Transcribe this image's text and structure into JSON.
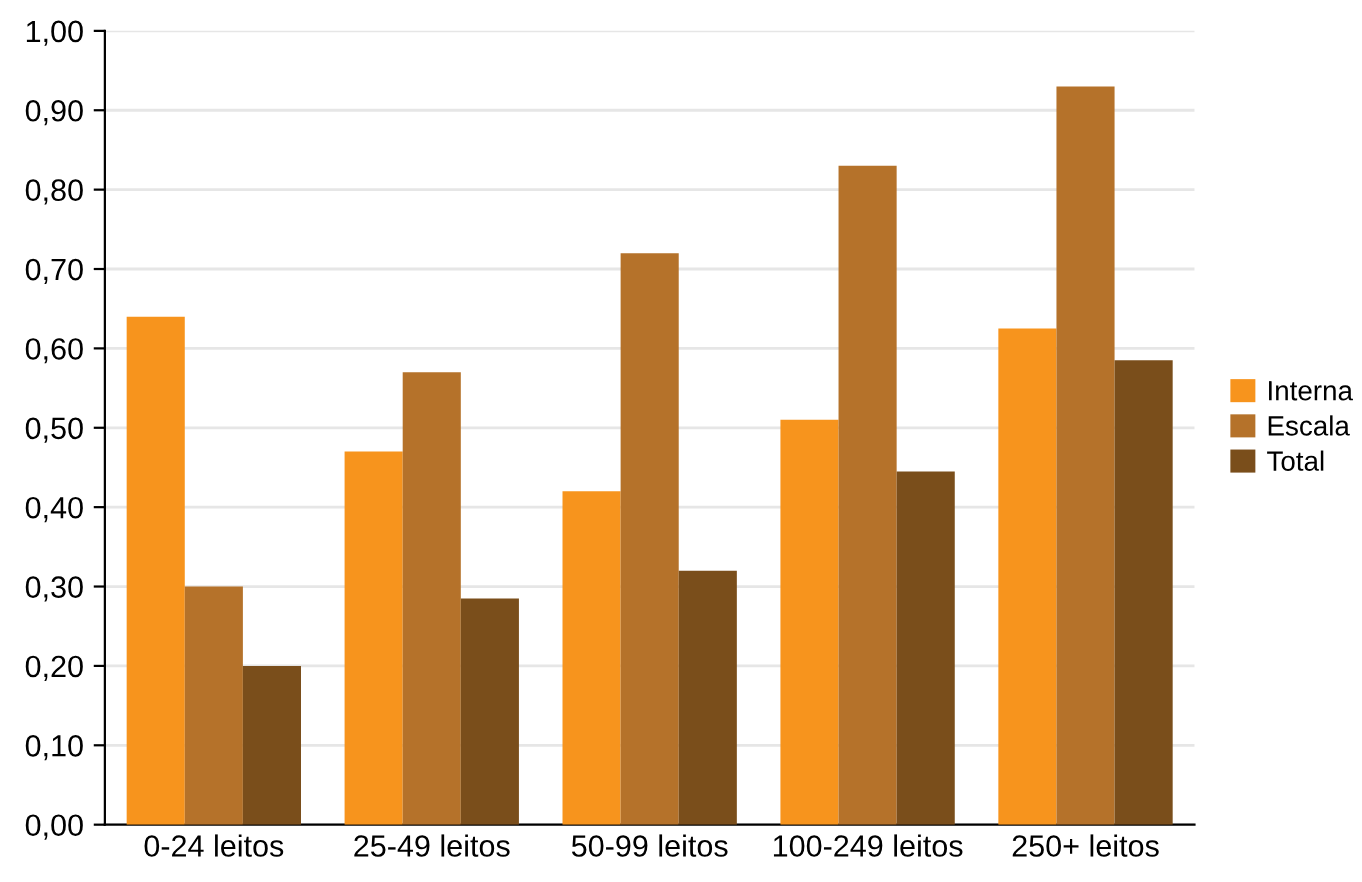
{
  "chart_data": {
    "type": "bar",
    "categories": [
      "0-24 leitos",
      "25-49 leitos",
      "50-99 leitos",
      "100-249 leitos",
      "250+ leitos"
    ],
    "series": [
      {
        "name": "Interna",
        "color": "#f7941d",
        "values": [
          0.64,
          0.47,
          0.42,
          0.51,
          0.625
        ]
      },
      {
        "name": "Escala",
        "color": "#b5722a",
        "values": [
          0.3,
          0.57,
          0.72,
          0.83,
          0.93
        ]
      },
      {
        "name": "Total",
        "color": "#7a4e1b",
        "values": [
          0.2,
          0.285,
          0.32,
          0.445,
          0.585
        ]
      }
    ],
    "ylim": [
      0,
      1
    ],
    "yticks": [
      {
        "value": 0,
        "label": "0,00"
      },
      {
        "value": 0.1,
        "label": "0,10"
      },
      {
        "value": 0.2,
        "label": "0,20"
      },
      {
        "value": 0.3,
        "label": "0,30"
      },
      {
        "value": 0.4,
        "label": "0,40"
      },
      {
        "value": 0.5,
        "label": "0,50"
      },
      {
        "value": 0.6,
        "label": "0,60"
      },
      {
        "value": 0.7,
        "label": "0,70"
      },
      {
        "value": 0.8,
        "label": "0,80"
      },
      {
        "value": 0.9,
        "label": "0,90"
      },
      {
        "value": 1,
        "label": "1,00"
      }
    ],
    "grid": "y",
    "legend": "right"
  }
}
